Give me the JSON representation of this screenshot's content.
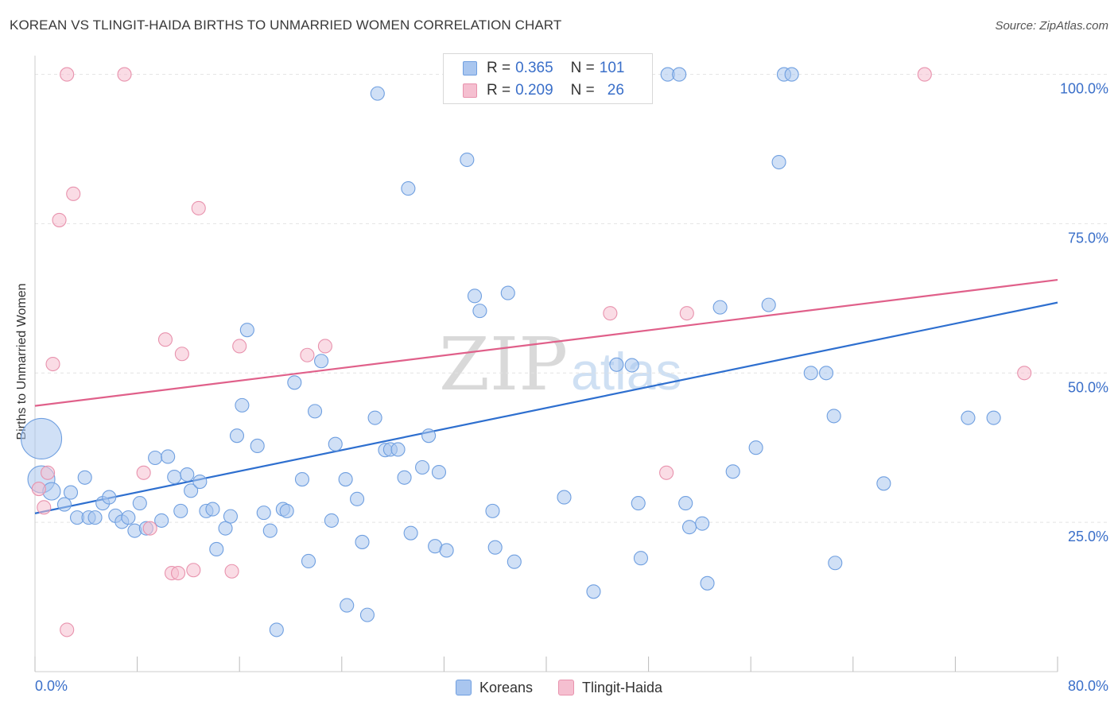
{
  "header": {
    "title": "KOREAN VS TLINGIT-HAIDA BIRTHS TO UNMARRIED WOMEN CORRELATION CHART",
    "source": "Source: ZipAtlas.com"
  },
  "legend": {
    "r_label": "R = ",
    "n_label": "N = ",
    "rows": [
      {
        "r": "0.365",
        "n": "101"
      },
      {
        "r": "0.209",
        "n": "26"
      }
    ]
  },
  "watermark": {
    "zip": "ZIP",
    "atlas": "atlas"
  },
  "colors": {
    "blue_fill": "#a9c6ef",
    "blue_stroke": "#6f9fe0",
    "blue_line": "#2e6fcf",
    "pink_fill": "#f5bfd0",
    "pink_stroke": "#e892ad",
    "pink_line": "#e0608a",
    "axis_text": "#3a6fc9",
    "grid": "#e3e3e3"
  },
  "chart_data": {
    "type": "scatter",
    "title": "KOREAN VS TLINGIT-HAIDA BIRTHS TO UNMARRIED WOMEN CORRELATION CHART",
    "xlabel": "",
    "ylabel": "Births to Unmarried Women",
    "xlim": [
      0,
      80
    ],
    "ylim": [
      0,
      105
    ],
    "x_tick_labels": [
      "0.0%",
      "80.0%"
    ],
    "y_ticks": [
      25,
      50,
      75,
      100
    ],
    "y_tick_labels": [
      "25.0%",
      "50.0%",
      "75.0%",
      "100.0%"
    ],
    "grid": true,
    "legend_position": "top-center",
    "series": [
      {
        "name": "Koreans",
        "color": "#a9c6ef",
        "r": 0.365,
        "n": 101,
        "trend": {
          "x": [
            0,
            80
          ],
          "y": [
            26.5,
            61.8
          ]
        },
        "points": [
          [
            0.5,
            39,
            3
          ],
          [
            0.5,
            32.2,
            2
          ],
          [
            1.3,
            30.2,
            1.3
          ],
          [
            2.3,
            28,
            1
          ],
          [
            2.8,
            30,
            1
          ],
          [
            3.3,
            25.8,
            1
          ],
          [
            3.9,
            32.5,
            1
          ],
          [
            4.2,
            25.8,
            1
          ],
          [
            4.7,
            25.8,
            1
          ],
          [
            5.3,
            28.2,
            1
          ],
          [
            5.8,
            29.2,
            1
          ],
          [
            6.3,
            26.1,
            1
          ],
          [
            6.8,
            25.1,
            1
          ],
          [
            7.3,
            25.8,
            1
          ],
          [
            7.8,
            23.6,
            1
          ],
          [
            8.2,
            28.2,
            1
          ],
          [
            8.7,
            24,
            1
          ],
          [
            9.4,
            35.8,
            1
          ],
          [
            9.9,
            25.3,
            1
          ],
          [
            10.4,
            36,
            1
          ],
          [
            10.9,
            32.6,
            1
          ],
          [
            11.4,
            26.9,
            1
          ],
          [
            11.9,
            33,
            1
          ],
          [
            12.2,
            30.3,
            1
          ],
          [
            12.9,
            31.8,
            1
          ],
          [
            13.4,
            26.9,
            1
          ],
          [
            13.9,
            27.2,
            1
          ],
          [
            14.2,
            20.5,
            1
          ],
          [
            14.9,
            24,
            1
          ],
          [
            15.3,
            26,
            1
          ],
          [
            15.8,
            39.5,
            1
          ],
          [
            16.2,
            44.6,
            1
          ],
          [
            16.6,
            57.2,
            1
          ],
          [
            17.4,
            37.8,
            1
          ],
          [
            17.9,
            26.6,
            1
          ],
          [
            18.4,
            23.6,
            1
          ],
          [
            18.9,
            7,
            1
          ],
          [
            19.4,
            27.2,
            1
          ],
          [
            19.7,
            26.9,
            1
          ],
          [
            20.3,
            48.4,
            1
          ],
          [
            20.9,
            32.2,
            1
          ],
          [
            21.4,
            18.5,
            1
          ],
          [
            21.9,
            43.6,
            1
          ],
          [
            22.4,
            52,
            1
          ],
          [
            23.2,
            25.3,
            1
          ],
          [
            23.5,
            38.1,
            1
          ],
          [
            24.3,
            32.2,
            1
          ],
          [
            24.4,
            11.1,
            1
          ],
          [
            25.2,
            28.9,
            1
          ],
          [
            25.6,
            21.7,
            1
          ],
          [
            26,
            9.5,
            1
          ],
          [
            26.6,
            42.5,
            1
          ],
          [
            26.8,
            96.8,
            1
          ],
          [
            27.4,
            37.1,
            1
          ],
          [
            27.8,
            37.2,
            1
          ],
          [
            28.4,
            37.2,
            1
          ],
          [
            28.9,
            32.5,
            1
          ],
          [
            29.2,
            80.9,
            1
          ],
          [
            29.4,
            23.2,
            1
          ],
          [
            30.3,
            34.2,
            1
          ],
          [
            30.8,
            39.5,
            1
          ],
          [
            31.3,
            21,
            1
          ],
          [
            31.6,
            33.4,
            1
          ],
          [
            32.2,
            20.3,
            1
          ],
          [
            33.2,
            100,
            1
          ],
          [
            33.8,
            85.7,
            1
          ],
          [
            34.4,
            62.9,
            1
          ],
          [
            34.8,
            60.4,
            1
          ],
          [
            35.8,
            26.9,
            1
          ],
          [
            36,
            20.8,
            1
          ],
          [
            37,
            63.4,
            1
          ],
          [
            37.5,
            18.4,
            1
          ],
          [
            38.3,
            100,
            1
          ],
          [
            41.4,
            29.2,
            1
          ],
          [
            43.7,
            13.4,
            1
          ],
          [
            45.5,
            51.4,
            1
          ],
          [
            46.7,
            51.3,
            1
          ],
          [
            47.2,
            28.2,
            1
          ],
          [
            47.4,
            19,
            1
          ],
          [
            49.5,
            100,
            1
          ],
          [
            50.4,
            100,
            1
          ],
          [
            50.9,
            28.2,
            1
          ],
          [
            51.2,
            24.2,
            1
          ],
          [
            52.2,
            24.8,
            1
          ],
          [
            52.6,
            14.8,
            1
          ],
          [
            53.6,
            61,
            1
          ],
          [
            54.6,
            33.5,
            1
          ],
          [
            56.4,
            37.5,
            1
          ],
          [
            57.4,
            61.4,
            1
          ],
          [
            58.2,
            85.3,
            1
          ],
          [
            58.6,
            100,
            1
          ],
          [
            59.2,
            100,
            1
          ],
          [
            60.7,
            50,
            1
          ],
          [
            61.9,
            50,
            1
          ],
          [
            62.5,
            42.8,
            1
          ],
          [
            62.6,
            18.2,
            1
          ],
          [
            66.4,
            31.5,
            1
          ],
          [
            73,
            42.5,
            1
          ],
          [
            75,
            42.5,
            1
          ]
        ]
      },
      {
        "name": "Tlingit-Haida",
        "color": "#f5bfd0",
        "r": 0.209,
        "n": 26,
        "trend": {
          "x": [
            0,
            80
          ],
          "y": [
            44.5,
            65.6
          ]
        },
        "points": [
          [
            0.3,
            30.6,
            1
          ],
          [
            0.7,
            27.5,
            1
          ],
          [
            1,
            33.3,
            1
          ],
          [
            1.4,
            51.5,
            1
          ],
          [
            1.9,
            75.6,
            1
          ],
          [
            2.5,
            100,
            1
          ],
          [
            2.5,
            7,
            1
          ],
          [
            3,
            80,
            1
          ],
          [
            7,
            100,
            1
          ],
          [
            8.5,
            33.3,
            1
          ],
          [
            9,
            24,
            1
          ],
          [
            10.2,
            55.6,
            1
          ],
          [
            10.7,
            16.5,
            1
          ],
          [
            11.2,
            16.5,
            1
          ],
          [
            11.5,
            53.2,
            1
          ],
          [
            12.4,
            17,
            1
          ],
          [
            12.8,
            77.6,
            1
          ],
          [
            15.4,
            16.8,
            1
          ],
          [
            16,
            54.5,
            1
          ],
          [
            21.3,
            53,
            1
          ],
          [
            22.7,
            54.5,
            1
          ],
          [
            45,
            60,
            1
          ],
          [
            49.4,
            33.3,
            1
          ],
          [
            51,
            60,
            1
          ],
          [
            69.6,
            100,
            1
          ],
          [
            77.4,
            50,
            1
          ]
        ]
      }
    ]
  }
}
